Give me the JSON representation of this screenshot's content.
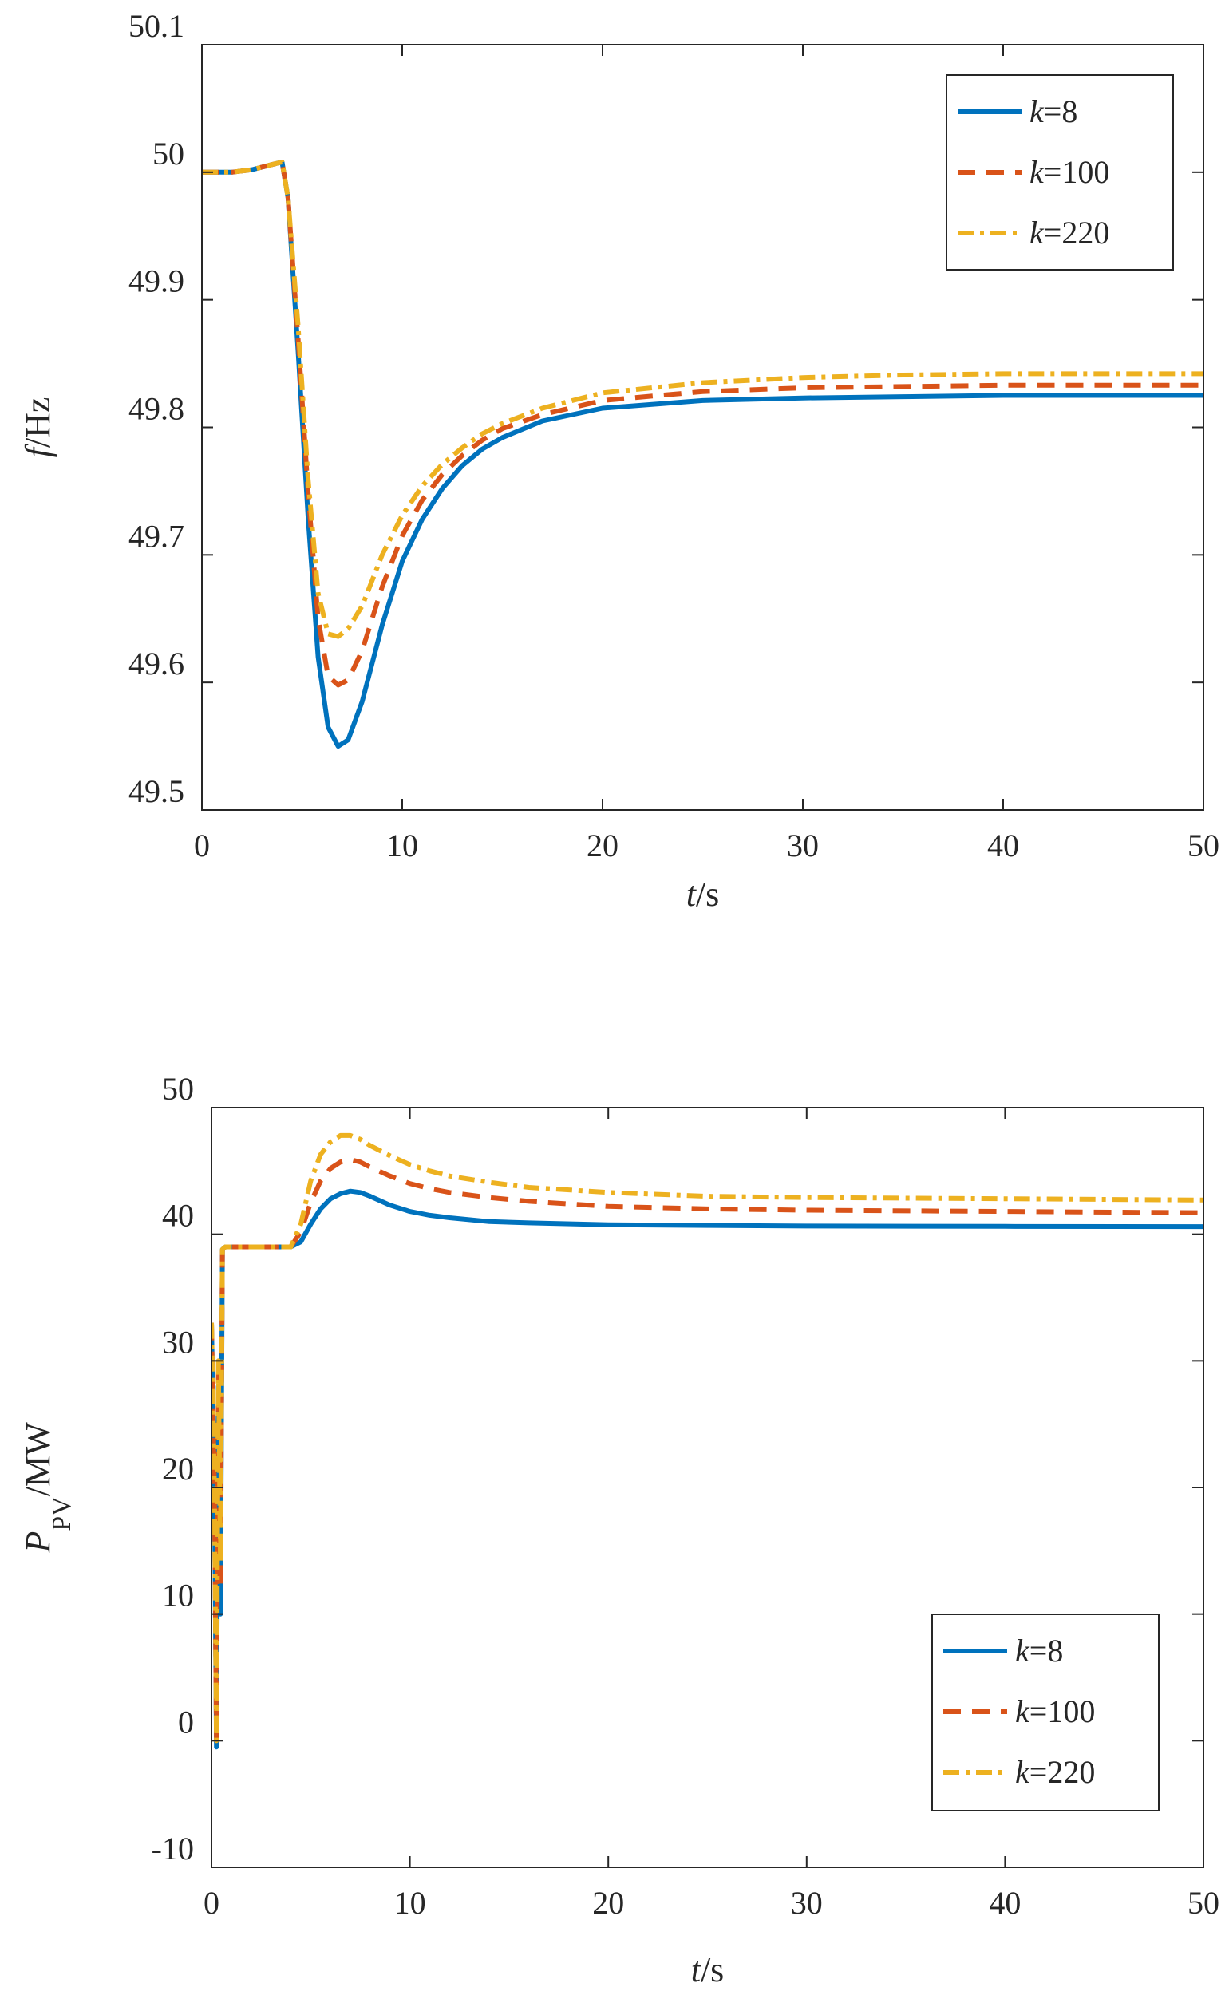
{
  "chart_data": [
    {
      "type": "line",
      "title": "",
      "xlabel": {
        "var": "t",
        "unit": "/s"
      },
      "ylabel": {
        "var": "f",
        "unit": "/Hz"
      },
      "xlim": [
        0,
        50
      ],
      "ylim": [
        49.5,
        50.1
      ],
      "xticks": [
        0,
        10,
        20,
        30,
        40,
        50
      ],
      "yticks": [
        49.5,
        49.6,
        49.7,
        49.8,
        49.9,
        50,
        50.1
      ],
      "grid": false,
      "legend_position": "top-right",
      "series": [
        {
          "name": "k=8",
          "label_var": "k",
          "label_val": "=8",
          "color": "#0072BD",
          "style": "solid",
          "x": [
            0,
            1.5,
            2.5,
            3.5,
            4,
            4.3,
            4.8,
            5.3,
            5.8,
            6.3,
            6.8,
            7.3,
            8,
            9,
            10,
            11,
            12,
            13,
            14,
            15,
            17,
            20,
            25,
            30,
            35,
            40,
            45,
            50
          ],
          "y": [
            50,
            50,
            50.002,
            50.006,
            50.008,
            49.98,
            49.86,
            49.73,
            49.62,
            49.565,
            49.55,
            49.555,
            49.585,
            49.645,
            49.695,
            49.728,
            49.752,
            49.77,
            49.783,
            49.792,
            49.805,
            49.815,
            49.821,
            49.823,
            49.824,
            49.825,
            49.825,
            49.825
          ]
        },
        {
          "name": "k=100",
          "label_var": "k",
          "label_val": "=100",
          "color": "#D95319",
          "style": "dashed",
          "x": [
            0,
            1.5,
            2.5,
            3.5,
            4,
            4.3,
            4.8,
            5.3,
            5.8,
            6.3,
            6.8,
            7.3,
            8,
            9,
            10,
            11,
            12,
            13,
            14,
            15,
            17,
            20,
            25,
            30,
            35,
            40,
            45,
            50
          ],
          "y": [
            50,
            50,
            50.002,
            50.006,
            50.008,
            49.98,
            49.87,
            49.75,
            49.65,
            49.605,
            49.598,
            49.602,
            49.625,
            49.675,
            49.715,
            49.743,
            49.763,
            49.778,
            49.79,
            49.799,
            49.81,
            49.821,
            49.828,
            49.831,
            49.832,
            49.833,
            49.833,
            49.833
          ]
        },
        {
          "name": "k=220",
          "label_var": "k",
          "label_val": "=220",
          "color": "#EDB120",
          "style": "dashdot",
          "x": [
            0,
            1.5,
            2.5,
            3.5,
            4,
            4.3,
            4.8,
            5.3,
            5.8,
            6.3,
            6.8,
            7.3,
            8,
            9,
            10,
            11,
            12,
            13,
            14,
            15,
            17,
            20,
            25,
            30,
            35,
            40,
            45,
            50
          ],
          "y": [
            50,
            50,
            50.002,
            50.006,
            50.008,
            49.98,
            49.88,
            49.76,
            49.67,
            49.638,
            49.636,
            49.642,
            49.66,
            49.7,
            49.731,
            49.754,
            49.771,
            49.784,
            49.795,
            49.803,
            49.815,
            49.827,
            49.835,
            49.839,
            49.841,
            49.842,
            49.842,
            49.842
          ]
        }
      ]
    },
    {
      "type": "line",
      "title": "",
      "xlabel": {
        "var": "t",
        "unit": "/s"
      },
      "ylabel": {
        "var": "P",
        "sub": "PV",
        "unit": "/MW"
      },
      "xlim": [
        0,
        50
      ],
      "ylim": [
        -10,
        50
      ],
      "xticks": [
        0,
        10,
        20,
        30,
        40,
        50
      ],
      "yticks": [
        -10,
        0,
        10,
        20,
        30,
        40,
        50
      ],
      "grid": false,
      "legend_position": "bottom-right",
      "series": [
        {
          "name": "k=8",
          "label_var": "k",
          "label_val": "=8",
          "color": "#0072BD",
          "style": "solid",
          "x": [
            0,
            0.15,
            0.25,
            0.35,
            0.45,
            0.55,
            0.7,
            1.0,
            2.0,
            3.0,
            4.0,
            4.5,
            5.0,
            5.5,
            6.0,
            6.5,
            7.0,
            7.5,
            8.0,
            9.0,
            10,
            11,
            12,
            14,
            16,
            20,
            25,
            30,
            40,
            50
          ],
          "y": [
            33,
            20,
            -0.5,
            28,
            10,
            38.8,
            39,
            39,
            39,
            39,
            39,
            39.4,
            40.8,
            42.0,
            42.8,
            43.2,
            43.4,
            43.3,
            43.0,
            42.3,
            41.8,
            41.5,
            41.3,
            41.0,
            40.9,
            40.75,
            40.7,
            40.65,
            40.62,
            40.6
          ]
        },
        {
          "name": "k=100",
          "label_var": "k",
          "label_val": "=100",
          "color": "#D95319",
          "style": "dashed",
          "x": [
            0,
            0.15,
            0.25,
            0.35,
            0.45,
            0.55,
            0.7,
            1.0,
            2.0,
            3.0,
            4.0,
            4.5,
            5.0,
            5.5,
            6.0,
            6.5,
            7.0,
            7.5,
            8.0,
            9.0,
            10,
            11,
            12,
            14,
            16,
            20,
            25,
            30,
            40,
            50
          ],
          "y": [
            33,
            20,
            0,
            29,
            12,
            38.8,
            39,
            39,
            39,
            39,
            39,
            40.2,
            42.5,
            44.2,
            45.2,
            45.7,
            45.9,
            45.7,
            45.3,
            44.6,
            44.0,
            43.6,
            43.3,
            42.9,
            42.6,
            42.2,
            42.0,
            41.9,
            41.8,
            41.7
          ]
        },
        {
          "name": "k=220",
          "label_var": "k",
          "label_val": "=220",
          "color": "#EDB120",
          "style": "dashdot",
          "x": [
            0,
            0.15,
            0.25,
            0.35,
            0.45,
            0.55,
            0.7,
            1.0,
            2.0,
            3.0,
            4.0,
            4.5,
            5.0,
            5.5,
            6.0,
            6.5,
            7.0,
            7.5,
            8.0,
            9.0,
            10,
            11,
            12,
            14,
            16,
            20,
            25,
            30,
            40,
            50
          ],
          "y": [
            33,
            20,
            0,
            30,
            14,
            38.8,
            39,
            39,
            39,
            39,
            39,
            40.8,
            44.2,
            46.3,
            47.3,
            47.8,
            47.8,
            47.5,
            47.0,
            46.2,
            45.5,
            45.0,
            44.6,
            44.1,
            43.7,
            43.3,
            43.0,
            42.9,
            42.8,
            42.7
          ]
        }
      ]
    }
  ]
}
